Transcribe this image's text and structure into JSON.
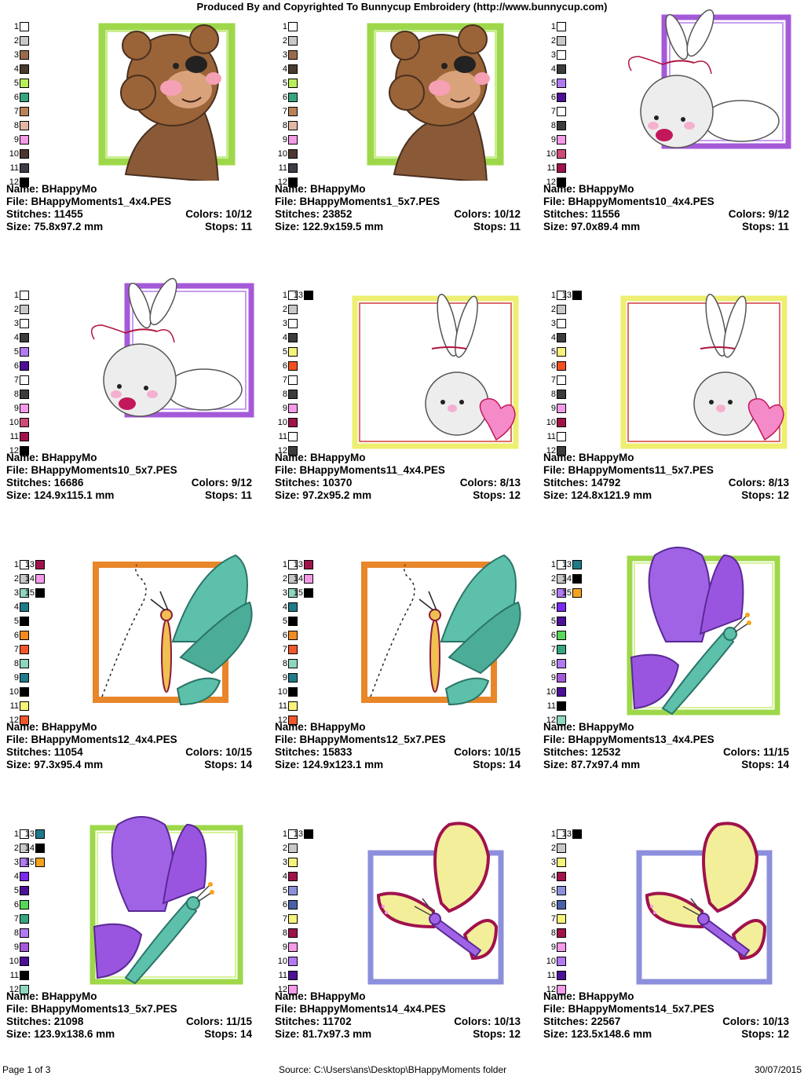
{
  "header": {
    "title": "Produced By and Copyrighted To Bunnycup Embroidery (http://www.bunnycup.com)"
  },
  "labels": {
    "name": "Name:",
    "file": "File:",
    "stitches": "Stitches:",
    "size": "Size:",
    "colors": "Colors:",
    "stops": "Stops:"
  },
  "designs": [
    {
      "name": "BHappyMo",
      "file": "BHappyMoments1_4x4.PES",
      "stitches": "11455",
      "colors": "10/12",
      "size": "75.8x97.2 mm",
      "stops": "11",
      "motif": "bear",
      "frame_color": "#9ed84a",
      "swatches": [
        {
          "n": "1",
          "c": "#ffffff"
        },
        {
          "n": "2",
          "c": "#c8c8c8"
        },
        {
          "n": "3",
          "c": "#9a6b4b"
        },
        {
          "n": "4",
          "c": "#4a3a2e"
        },
        {
          "n": "5",
          "c": "#b8ef58"
        },
        {
          "n": "6",
          "c": "#37a57e"
        },
        {
          "n": "7",
          "c": "#b98257"
        },
        {
          "n": "8",
          "c": "#e3b7a3"
        },
        {
          "n": "9",
          "c": "#f59ae9"
        },
        {
          "n": "10",
          "c": "#4d3630"
        },
        {
          "n": "11",
          "c": "#3b3d45"
        },
        {
          "n": "12",
          "c": "#000000"
        }
      ]
    },
    {
      "name": "BHappyMo",
      "file": "BHappyMoments1_5x7.PES",
      "stitches": "23852",
      "colors": "10/12",
      "size": "122.9x159.5 mm",
      "stops": "11",
      "motif": "bear",
      "frame_color": "#9ed84a",
      "swatches": [
        {
          "n": "1",
          "c": "#ffffff"
        },
        {
          "n": "2",
          "c": "#c8c8c8"
        },
        {
          "n": "3",
          "c": "#9a6b4b"
        },
        {
          "n": "4",
          "c": "#4a3a2e"
        },
        {
          "n": "5",
          "c": "#b8ef58"
        },
        {
          "n": "6",
          "c": "#37a57e"
        },
        {
          "n": "7",
          "c": "#b98257"
        },
        {
          "n": "8",
          "c": "#e3b7a3"
        },
        {
          "n": "9",
          "c": "#f59ae9"
        },
        {
          "n": "10",
          "c": "#4d3630"
        },
        {
          "n": "11",
          "c": "#3b3d45"
        },
        {
          "n": "12",
          "c": "#000000"
        }
      ]
    },
    {
      "name": "BHappyMo",
      "file": "BHappyMoments10_4x4.PES",
      "stitches": "11556",
      "colors": "9/12",
      "size": "97.0x89.4 mm",
      "stops": "11",
      "motif": "bunny",
      "frame_color": "#a45ad8",
      "swatches": [
        {
          "n": "1",
          "c": "#ffffff"
        },
        {
          "n": "2",
          "c": "#c8c8c8"
        },
        {
          "n": "3",
          "c": "#ffffff"
        },
        {
          "n": "4",
          "c": "#3c3c3c"
        },
        {
          "n": "5",
          "c": "#b27af2"
        },
        {
          "n": "6",
          "c": "#4d1096"
        },
        {
          "n": "7",
          "c": "#ffffff"
        },
        {
          "n": "8",
          "c": "#3c3c3c"
        },
        {
          "n": "9",
          "c": "#f59ae9"
        },
        {
          "n": "10",
          "c": "#cc4b78"
        },
        {
          "n": "11",
          "c": "#a0124c"
        },
        {
          "n": "12",
          "c": "#000000"
        }
      ]
    },
    {
      "name": "BHappyMo",
      "file": "BHappyMoments10_5x7.PES",
      "stitches": "16686",
      "colors": "9/12",
      "size": "124.9x115.1 mm",
      "stops": "11",
      "motif": "bunny",
      "frame_color": "#a45ad8",
      "swatches": [
        {
          "n": "1",
          "c": "#ffffff"
        },
        {
          "n": "2",
          "c": "#c8c8c8"
        },
        {
          "n": "3",
          "c": "#ffffff"
        },
        {
          "n": "4",
          "c": "#3c3c3c"
        },
        {
          "n": "5",
          "c": "#b27af2"
        },
        {
          "n": "6",
          "c": "#4d1096"
        },
        {
          "n": "7",
          "c": "#ffffff"
        },
        {
          "n": "8",
          "c": "#3c3c3c"
        },
        {
          "n": "9",
          "c": "#f59ae9"
        },
        {
          "n": "10",
          "c": "#cc4b78"
        },
        {
          "n": "11",
          "c": "#a0124c"
        },
        {
          "n": "12",
          "c": "#000000"
        }
      ]
    },
    {
      "name": "BHappyMo",
      "file": "BHappyMoments11_4x4.PES",
      "stitches": "10370",
      "colors": "8/13",
      "size": "97.2x95.2 mm",
      "stops": "12",
      "motif": "bunny-heart",
      "frame_color": "#eeee70",
      "swatches": [
        {
          "n": "1",
          "c": "#ffffff"
        },
        {
          "n": "2",
          "c": "#c8c8c8"
        },
        {
          "n": "3",
          "c": "#ffffff"
        },
        {
          "n": "4",
          "c": "#3c3c3c"
        },
        {
          "n": "5",
          "c": "#f7f27a"
        },
        {
          "n": "6",
          "c": "#f24f1d"
        },
        {
          "n": "7",
          "c": "#ffffff"
        },
        {
          "n": "8",
          "c": "#3c3c3c"
        },
        {
          "n": "9",
          "c": "#f59ae9"
        },
        {
          "n": "10",
          "c": "#a0124c"
        },
        {
          "n": "11",
          "c": "#ffffff"
        },
        {
          "n": "12",
          "c": "#3c3c3c"
        },
        {
          "n": "13",
          "c": "#000000"
        }
      ]
    },
    {
      "name": "BHappyMo",
      "file": "BHappyMoments11_5x7.PES",
      "stitches": "14792",
      "colors": "8/13",
      "size": "124.8x121.9 mm",
      "stops": "12",
      "motif": "bunny-heart",
      "frame_color": "#eeee70",
      "swatches": [
        {
          "n": "1",
          "c": "#ffffff"
        },
        {
          "n": "2",
          "c": "#c8c8c8"
        },
        {
          "n": "3",
          "c": "#ffffff"
        },
        {
          "n": "4",
          "c": "#3c3c3c"
        },
        {
          "n": "5",
          "c": "#f7f27a"
        },
        {
          "n": "6",
          "c": "#f24f1d"
        },
        {
          "n": "7",
          "c": "#ffffff"
        },
        {
          "n": "8",
          "c": "#3c3c3c"
        },
        {
          "n": "9",
          "c": "#f59ae9"
        },
        {
          "n": "10",
          "c": "#a0124c"
        },
        {
          "n": "11",
          "c": "#ffffff"
        },
        {
          "n": "12",
          "c": "#3c3c3c"
        },
        {
          "n": "13",
          "c": "#000000"
        }
      ]
    },
    {
      "name": "BHappyMo",
      "file": "BHappyMoments12_4x4.PES",
      "stitches": "11054",
      "colors": "10/15",
      "size": "97.3x95.4 mm",
      "stops": "14",
      "motif": "butterfly-teal",
      "frame_color": "#e8862a",
      "swatches": [
        {
          "n": "1",
          "c": "#ffffff"
        },
        {
          "n": "2",
          "c": "#c8c8c8"
        },
        {
          "n": "3",
          "c": "#8fd6bf"
        },
        {
          "n": "4",
          "c": "#1e7b88"
        },
        {
          "n": "5",
          "c": "#000000"
        },
        {
          "n": "6",
          "c": "#f58a1f"
        },
        {
          "n": "7",
          "c": "#f2562b"
        },
        {
          "n": "8",
          "c": "#8fd6bf"
        },
        {
          "n": "9",
          "c": "#1e7b88"
        },
        {
          "n": "10",
          "c": "#000000"
        },
        {
          "n": "11",
          "c": "#f7f27a"
        },
        {
          "n": "12",
          "c": "#f2562b"
        },
        {
          "n": "13",
          "c": "#a0124c"
        },
        {
          "n": "14",
          "c": "#f59ae9"
        },
        {
          "n": "15",
          "c": "#000000"
        }
      ]
    },
    {
      "name": "BHappyMo",
      "file": "BHappyMoments12_5x7.PES",
      "stitches": "15833",
      "colors": "10/15",
      "size": "124.9x123.1 mm",
      "stops": "14",
      "motif": "butterfly-teal",
      "frame_color": "#e8862a",
      "swatches": [
        {
          "n": "1",
          "c": "#ffffff"
        },
        {
          "n": "2",
          "c": "#c8c8c8"
        },
        {
          "n": "3",
          "c": "#8fd6bf"
        },
        {
          "n": "4",
          "c": "#1e7b88"
        },
        {
          "n": "5",
          "c": "#000000"
        },
        {
          "n": "6",
          "c": "#f58a1f"
        },
        {
          "n": "7",
          "c": "#f2562b"
        },
        {
          "n": "8",
          "c": "#8fd6bf"
        },
        {
          "n": "9",
          "c": "#1e7b88"
        },
        {
          "n": "10",
          "c": "#000000"
        },
        {
          "n": "11",
          "c": "#f7f27a"
        },
        {
          "n": "12",
          "c": "#f2562b"
        },
        {
          "n": "13",
          "c": "#a0124c"
        },
        {
          "n": "14",
          "c": "#f59ae9"
        },
        {
          "n": "15",
          "c": "#000000"
        }
      ]
    },
    {
      "name": "BHappyMo",
      "file": "BHappyMoments13_4x4.PES",
      "stitches": "12532",
      "colors": "11/15",
      "size": "87.7x97.4 mm",
      "stops": "14",
      "motif": "butterfly-purple",
      "frame_color": "#9ed84a",
      "swatches": [
        {
          "n": "1",
          "c": "#ffffff"
        },
        {
          "n": "2",
          "c": "#c8c8c8"
        },
        {
          "n": "3",
          "c": "#b27af2"
        },
        {
          "n": "4",
          "c": "#7a29ef"
        },
        {
          "n": "5",
          "c": "#4d1096"
        },
        {
          "n": "6",
          "c": "#58d85a"
        },
        {
          "n": "7",
          "c": "#37a57e"
        },
        {
          "n": "8",
          "c": "#b27af2"
        },
        {
          "n": "9",
          "c": "#a45ad8"
        },
        {
          "n": "10",
          "c": "#4d1096"
        },
        {
          "n": "11",
          "c": "#000000"
        },
        {
          "n": "12",
          "c": "#8fd6bf"
        },
        {
          "n": "13",
          "c": "#1e7b88"
        },
        {
          "n": "14",
          "c": "#000000"
        },
        {
          "n": "15",
          "c": "#f5a31f"
        }
      ]
    },
    {
      "name": "BHappyMo",
      "file": "BHappyMoments13_5x7.PES",
      "stitches": "21098",
      "colors": "11/15",
      "size": "123.9x138.6 mm",
      "stops": "14",
      "motif": "butterfly-purple",
      "frame_color": "#9ed84a",
      "swatches": [
        {
          "n": "1",
          "c": "#ffffff"
        },
        {
          "n": "2",
          "c": "#c8c8c8"
        },
        {
          "n": "3",
          "c": "#b27af2"
        },
        {
          "n": "4",
          "c": "#7a29ef"
        },
        {
          "n": "5",
          "c": "#4d1096"
        },
        {
          "n": "6",
          "c": "#58d85a"
        },
        {
          "n": "7",
          "c": "#37a57e"
        },
        {
          "n": "8",
          "c": "#b27af2"
        },
        {
          "n": "9",
          "c": "#a45ad8"
        },
        {
          "n": "10",
          "c": "#4d1096"
        },
        {
          "n": "11",
          "c": "#000000"
        },
        {
          "n": "12",
          "c": "#8fd6bf"
        },
        {
          "n": "13",
          "c": "#1e7b88"
        },
        {
          "n": "14",
          "c": "#000000"
        },
        {
          "n": "15",
          "c": "#f5a31f"
        }
      ]
    },
    {
      "name": "BHappyMo",
      "file": "BHappyMoments14_4x4.PES",
      "stitches": "11702",
      "colors": "10/13",
      "size": "81.7x97.3 mm",
      "stops": "12",
      "motif": "butterfly-yellow",
      "frame_color": "#8c8fdc",
      "swatches": [
        {
          "n": "1",
          "c": "#ffffff"
        },
        {
          "n": "2",
          "c": "#c8c8c8"
        },
        {
          "n": "3",
          "c": "#f7f27a"
        },
        {
          "n": "4",
          "c": "#a0124c"
        },
        {
          "n": "5",
          "c": "#8c8fdc"
        },
        {
          "n": "6",
          "c": "#4a5fa8"
        },
        {
          "n": "7",
          "c": "#f7f27a"
        },
        {
          "n": "8",
          "c": "#a0124c"
        },
        {
          "n": "9",
          "c": "#f59ae9"
        },
        {
          "n": "10",
          "c": "#b27af2"
        },
        {
          "n": "11",
          "c": "#4d1096"
        },
        {
          "n": "12",
          "c": "#f59ae9"
        },
        {
          "n": "13",
          "c": "#000000"
        }
      ]
    },
    {
      "name": "BHappyMo",
      "file": "BHappyMoments14_5x7.PES",
      "stitches": "22567",
      "colors": "10/13",
      "size": "123.5x148.6 mm",
      "stops": "12",
      "motif": "butterfly-yellow",
      "frame_color": "#8c8fdc",
      "swatches": [
        {
          "n": "1",
          "c": "#ffffff"
        },
        {
          "n": "2",
          "c": "#c8c8c8"
        },
        {
          "n": "3",
          "c": "#f7f27a"
        },
        {
          "n": "4",
          "c": "#a0124c"
        },
        {
          "n": "5",
          "c": "#8c8fdc"
        },
        {
          "n": "6",
          "c": "#4a5fa8"
        },
        {
          "n": "7",
          "c": "#f7f27a"
        },
        {
          "n": "8",
          "c": "#a0124c"
        },
        {
          "n": "9",
          "c": "#f59ae9"
        },
        {
          "n": "10",
          "c": "#b27af2"
        },
        {
          "n": "11",
          "c": "#4d1096"
        },
        {
          "n": "12",
          "c": "#f59ae9"
        },
        {
          "n": "13",
          "c": "#000000"
        }
      ]
    }
  ],
  "footer": {
    "page": "Page 1 of 3",
    "source": "Source: C:\\Users\\ans\\Desktop\\BHappyMoments folder",
    "date": "30/07/2015"
  }
}
